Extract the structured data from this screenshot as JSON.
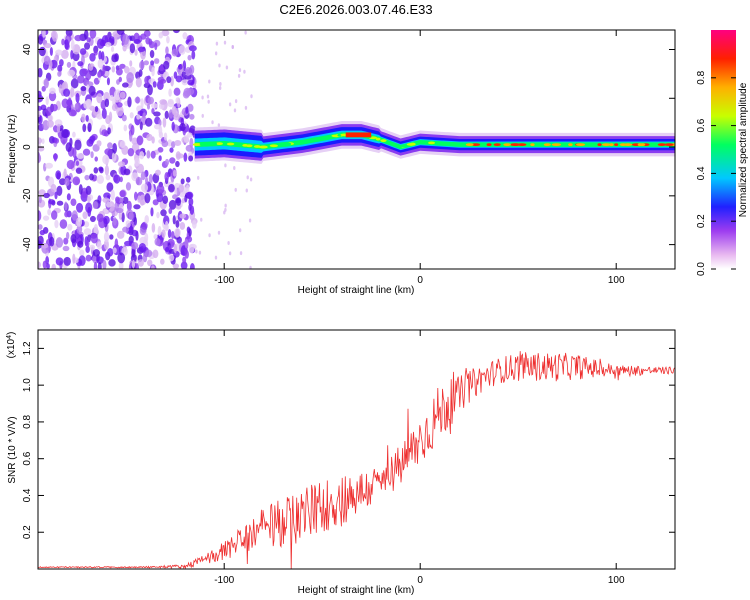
{
  "title": "C2E6.2026.003.07.46.E33",
  "chart_data": [
    {
      "type": "heatmap",
      "xlabel": "Height of straight line (km)",
      "ylabel": "Frequency (Hz)",
      "xlim": [
        -195,
        130
      ],
      "ylim": [
        -50,
        48
      ],
      "xticks": [
        -100,
        0,
        100
      ],
      "yticks": [
        -40,
        -20,
        0,
        20,
        40
      ],
      "grid": false,
      "noise_region_x": [
        -195,
        -115
      ],
      "colorbar": {
        "label": "Normalized spectral amplitude",
        "range": [
          0,
          1
        ],
        "ticks": [
          0.0,
          0.2,
          0.4,
          0.6,
          0.8
        ],
        "tick_labels": [
          "0.0",
          "0.2",
          "0.4",
          "0.6",
          "0.8"
        ],
        "colors": [
          "#ffffff",
          "#d8b8f0",
          "#8a3cf0",
          "#1a1aff",
          "#00c8ff",
          "#00ff60",
          "#c8ff00",
          "#ffb000",
          "#ff2000",
          "#ff0080"
        ]
      },
      "ridge": {
        "x": [
          -115,
          -100,
          -80,
          -60,
          -40,
          -30,
          -20,
          -10,
          0,
          20,
          40,
          60,
          80,
          100,
          130
        ],
        "freq": [
          1,
          1.5,
          0,
          2,
          5,
          5,
          3,
          0,
          2,
          1,
          1,
          1,
          1,
          1,
          1
        ]
      }
    },
    {
      "type": "line",
      "xlabel": "Height of straight line (km)",
      "ylabel": "SNR (10 * V/V)",
      "y_multiplier": "(x10",
      "y_multiplier_exp": "4",
      "y_multiplier_close": ")",
      "xlim": [
        -195,
        130
      ],
      "ylim": [
        0,
        1.3
      ],
      "xticks": [
        -100,
        0,
        100
      ],
      "yticks": [
        0.2,
        0.4,
        0.6,
        0.8,
        1.0,
        1.2
      ],
      "ytick_labels": [
        "0.2",
        "0.4",
        "0.6",
        "0.8",
        "1.0",
        "1.2"
      ],
      "grid": false,
      "series": [
        {
          "name": "SNR",
          "color": "#ee3030",
          "x": [
            -195,
            -140,
            -120,
            -110,
            -100,
            -90,
            -80,
            -70,
            -60,
            -50,
            -40,
            -30,
            -20,
            -10,
            0,
            10,
            20,
            30,
            40,
            50,
            60,
            70,
            80,
            90,
            100,
            110,
            120,
            130
          ],
          "y": [
            0.01,
            0.01,
            0.015,
            0.05,
            0.1,
            0.16,
            0.22,
            0.25,
            0.3,
            0.34,
            0.38,
            0.42,
            0.47,
            0.56,
            0.7,
            0.85,
            0.95,
            1.03,
            1.08,
            1.1,
            1.1,
            1.1,
            1.1,
            1.09,
            1.08,
            1.08,
            1.08,
            1.08
          ],
          "noise_amplitude": [
            0.003,
            0.004,
            0.01,
            0.03,
            0.05,
            0.08,
            0.12,
            0.14,
            0.15,
            0.15,
            0.15,
            0.12,
            0.1,
            0.12,
            0.14,
            0.16,
            0.1,
            0.08,
            0.07,
            0.08,
            0.08,
            0.08,
            0.07,
            0.05,
            0.03,
            0.03,
            0.02,
            0.02
          ]
        }
      ]
    }
  ]
}
